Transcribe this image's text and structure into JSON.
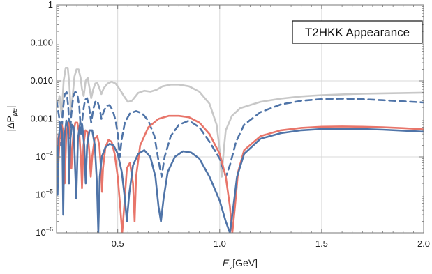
{
  "chart_data": {
    "type": "line",
    "annotation": "T2HKK Appearance",
    "xlabel": {
      "main": "E",
      "sub": "ν",
      "unit": "[GeV]"
    },
    "ylabel": {
      "main": "|ΔP",
      "sub": "μe",
      "close": "|"
    },
    "xlim": [
      0.2,
      2.0
    ],
    "ylim_log10": [
      -6,
      0
    ],
    "y_scale": "log",
    "grid": true,
    "x_ticks": [
      {
        "value": 0.5,
        "label": "0.5"
      },
      {
        "value": 1.0,
        "label": "1.0"
      },
      {
        "value": 1.5,
        "label": "1.5"
      },
      {
        "value": 2.0,
        "label": "2.0"
      }
    ],
    "y_ticks": [
      {
        "exp": 0,
        "label": "1",
        "sup": ""
      },
      {
        "exp": -1,
        "label": "0.100",
        "sup": ""
      },
      {
        "exp": -2,
        "label": "0.010",
        "sup": ""
      },
      {
        "exp": -3,
        "label": "0.001",
        "sup": ""
      },
      {
        "exp": -4,
        "label": "10",
        "sup": "−4"
      },
      {
        "exp": -5,
        "label": "10",
        "sup": "−5"
      },
      {
        "exp": -6,
        "label": "10",
        "sup": "−6"
      }
    ],
    "series": [
      {
        "color": "#c8c8c8",
        "dash": "solid",
        "points": [
          [
            0.2,
            0.002
          ],
          [
            0.215,
            0.004
          ],
          [
            0.225,
            0.0012
          ],
          [
            0.235,
            0.01
          ],
          [
            0.245,
            0.022
          ],
          [
            0.255,
            0.022
          ],
          [
            0.263,
            0.008
          ],
          [
            0.27,
            0.0015
          ],
          [
            0.278,
            0.0035
          ],
          [
            0.288,
            0.013
          ],
          [
            0.298,
            0.02
          ],
          [
            0.308,
            0.02
          ],
          [
            0.318,
            0.012
          ],
          [
            0.325,
            0.006
          ],
          [
            0.333,
            0.004
          ],
          [
            0.343,
            0.01
          ],
          [
            0.353,
            0.012
          ],
          [
            0.363,
            0.006
          ],
          [
            0.37,
            0.0035
          ],
          [
            0.38,
            0.006
          ],
          [
            0.39,
            0.0085
          ],
          [
            0.4,
            0.009
          ],
          [
            0.412,
            0.006
          ],
          [
            0.42,
            0.0045
          ],
          [
            0.432,
            0.0065
          ],
          [
            0.45,
            0.0085
          ],
          [
            0.47,
            0.0095
          ],
          [
            0.49,
            0.0085
          ],
          [
            0.51,
            0.006
          ],
          [
            0.53,
            0.004
          ],
          [
            0.55,
            0.0028
          ],
          [
            0.57,
            0.003
          ],
          [
            0.6,
            0.0048
          ],
          [
            0.63,
            0.0055
          ],
          [
            0.66,
            0.0052
          ],
          [
            0.69,
            0.0058
          ],
          [
            0.72,
            0.0072
          ],
          [
            0.76,
            0.008
          ],
          [
            0.8,
            0.008
          ],
          [
            0.85,
            0.0072
          ],
          [
            0.9,
            0.0052
          ],
          [
            0.95,
            0.0025
          ],
          [
            0.985,
            0.0007
          ],
          [
            1.0,
            0.00015
          ],
          [
            1.01,
            3e-05
          ],
          [
            1.02,
            0.00015
          ],
          [
            1.03,
            0.0005
          ],
          [
            1.06,
            0.0012
          ],
          [
            1.1,
            0.0019
          ],
          [
            1.2,
            0.0028
          ],
          [
            1.3,
            0.0034
          ],
          [
            1.4,
            0.0039
          ],
          [
            1.5,
            0.0042
          ],
          [
            1.6,
            0.0044
          ],
          [
            1.7,
            0.0046
          ],
          [
            1.8,
            0.0047
          ],
          [
            1.9,
            0.0048
          ],
          [
            2.0,
            0.0049
          ]
        ]
      },
      {
        "color": "#4f74a8",
        "dash": "dashed",
        "points": [
          [
            0.2,
            0.003
          ],
          [
            0.212,
            0.0012
          ],
          [
            0.222,
            0.0002
          ],
          [
            0.23,
            0.0015
          ],
          [
            0.24,
            0.0045
          ],
          [
            0.25,
            0.005
          ],
          [
            0.258,
            0.002
          ],
          [
            0.265,
            0.0003
          ],
          [
            0.272,
            0.0012
          ],
          [
            0.282,
            0.004
          ],
          [
            0.292,
            0.0052
          ],
          [
            0.302,
            0.0045
          ],
          [
            0.312,
            0.002
          ],
          [
            0.32,
            0.0004
          ],
          [
            0.33,
            0.0015
          ],
          [
            0.34,
            0.0032
          ],
          [
            0.35,
            0.0035
          ],
          [
            0.36,
            0.002
          ],
          [
            0.37,
            0.0008
          ],
          [
            0.38,
            0.0018
          ],
          [
            0.39,
            0.0028
          ],
          [
            0.4,
            0.003
          ],
          [
            0.412,
            0.0018
          ],
          [
            0.42,
            0.001
          ],
          [
            0.432,
            0.0016
          ],
          [
            0.445,
            0.0022
          ],
          [
            0.46,
            0.0023
          ],
          [
            0.475,
            0.0017
          ],
          [
            0.49,
            0.0009
          ],
          [
            0.5,
            0.0004
          ],
          [
            0.51,
            0.0001
          ],
          [
            0.52,
            0.0003
          ],
          [
            0.535,
            0.0008
          ],
          [
            0.56,
            0.0014
          ],
          [
            0.59,
            0.0016
          ],
          [
            0.62,
            0.0014
          ],
          [
            0.65,
            0.0009
          ],
          [
            0.68,
            0.00035
          ],
          [
            0.7,
            8e-05
          ],
          [
            0.715,
            3e-05
          ],
          [
            0.73,
            0.0001
          ],
          [
            0.76,
            0.00035
          ],
          [
            0.8,
            0.0007
          ],
          [
            0.85,
            0.0009
          ],
          [
            0.9,
            0.0006
          ],
          [
            0.95,
            0.00025
          ],
          [
            1.0,
            9e-05
          ],
          [
            1.03,
            3e-05
          ],
          [
            1.05,
            6e-05
          ],
          [
            1.08,
            0.00025
          ],
          [
            1.12,
            0.0007
          ],
          [
            1.2,
            0.0015
          ],
          [
            1.3,
            0.0024
          ],
          [
            1.4,
            0.003
          ],
          [
            1.5,
            0.0033
          ],
          [
            1.6,
            0.0034
          ],
          [
            1.7,
            0.0033
          ],
          [
            1.8,
            0.0031
          ],
          [
            1.9,
            0.0029
          ],
          [
            2.0,
            0.0027
          ]
        ]
      },
      {
        "color": "#e8756a",
        "dash": "solid",
        "points": [
          [
            0.2,
            0.0004
          ],
          [
            0.208,
            5e-05
          ],
          [
            0.215,
            0.0003
          ],
          [
            0.225,
            0.0007
          ],
          [
            0.232,
            0.0005
          ],
          [
            0.24,
            2e-05
          ],
          [
            0.248,
            0.0004
          ],
          [
            0.258,
            0.0008
          ],
          [
            0.266,
            0.0005
          ],
          [
            0.273,
            5e-05
          ],
          [
            0.282,
            0.0004
          ],
          [
            0.292,
            0.0008
          ],
          [
            0.302,
            0.0008
          ],
          [
            0.312,
            0.0004
          ],
          [
            0.32,
            8e-05
          ],
          [
            0.325,
            1.5e-05
          ],
          [
            0.332,
            0.0002
          ],
          [
            0.342,
            0.0005
          ],
          [
            0.352,
            0.00045
          ],
          [
            0.36,
            0.00015
          ],
          [
            0.368,
            3e-05
          ],
          [
            0.375,
            0.0001
          ],
          [
            0.387,
            0.0003
          ],
          [
            0.4,
            0.00035
          ],
          [
            0.41,
            0.0002
          ],
          [
            0.418,
            5e-05
          ],
          [
            0.423,
            1.2e-05
          ],
          [
            0.428,
            5e-05
          ],
          [
            0.44,
            0.00018
          ],
          [
            0.455,
            0.00028
          ],
          [
            0.47,
            0.00025
          ],
          [
            0.485,
            0.00012
          ],
          [
            0.5,
            3e-05
          ],
          [
            0.512,
            5e-06
          ],
          [
            0.522,
            1e-06
          ],
          [
            0.532,
            5e-06
          ],
          [
            0.545,
            5e-05
          ],
          [
            0.56,
            7e-05
          ],
          [
            0.575,
            2e-05
          ],
          [
            0.583,
            2e-06
          ],
          [
            0.59,
            3e-05
          ],
          [
            0.61,
            0.0002
          ],
          [
            0.65,
            0.0006
          ],
          [
            0.7,
            0.001
          ],
          [
            0.75,
            0.0012
          ],
          [
            0.8,
            0.0012
          ],
          [
            0.85,
            0.0011
          ],
          [
            0.9,
            0.0008
          ],
          [
            0.95,
            0.0004
          ],
          [
            1.0,
            0.00012
          ],
          [
            1.03,
            3e-05
          ],
          [
            1.05,
            5e-06
          ],
          [
            1.062,
            1e-06
          ],
          [
            1.075,
            5e-06
          ],
          [
            1.09,
            4e-05
          ],
          [
            1.12,
            0.00015
          ],
          [
            1.2,
            0.00035
          ],
          [
            1.3,
            0.0005
          ],
          [
            1.4,
            0.00058
          ],
          [
            1.5,
            0.00062
          ],
          [
            1.6,
            0.00063
          ],
          [
            1.7,
            0.00062
          ],
          [
            1.8,
            0.0006
          ],
          [
            1.9,
            0.00057
          ],
          [
            2.0,
            0.00053
          ]
        ]
      },
      {
        "color": "#4f74a8",
        "dash": "solid",
        "points": [
          [
            0.2,
            0.0002
          ],
          [
            0.205,
            1e-05
          ],
          [
            0.21,
            0.0003
          ],
          [
            0.22,
            0.0008
          ],
          [
            0.228,
            0.0004
          ],
          [
            0.233,
            3e-06
          ],
          [
            0.238,
            0.0003
          ],
          [
            0.248,
            0.0009
          ],
          [
            0.256,
            0.0006
          ],
          [
            0.262,
            2e-05
          ],
          [
            0.268,
            0.0003
          ],
          [
            0.276,
            0.0007
          ],
          [
            0.284,
            0.0006
          ],
          [
            0.291,
            5e-05
          ],
          [
            0.297,
            8e-06
          ],
          [
            0.305,
            0.0003
          ],
          [
            0.316,
            0.0008
          ],
          [
            0.326,
            0.0007
          ],
          [
            0.336,
            0.0002
          ],
          [
            0.343,
            2e-05
          ],
          [
            0.35,
            0.0002
          ],
          [
            0.362,
            0.0005
          ],
          [
            0.375,
            0.0005
          ],
          [
            0.388,
            0.0002
          ],
          [
            0.398,
            2e-05
          ],
          [
            0.405,
            1e-06
          ],
          [
            0.412,
            3e-05
          ],
          [
            0.422,
            0.0001
          ],
          [
            0.44,
            0.00018
          ],
          [
            0.46,
            0.00022
          ],
          [
            0.48,
            0.0002
          ],
          [
            0.5,
            0.00012
          ],
          [
            0.52,
            4e-05
          ],
          [
            0.535,
            8e-06
          ],
          [
            0.545,
            2e-06
          ],
          [
            0.556,
            1e-05
          ],
          [
            0.575,
            6e-05
          ],
          [
            0.6,
            0.00012
          ],
          [
            0.63,
            0.00015
          ],
          [
            0.66,
            0.0001
          ],
          [
            0.685,
            3e-05
          ],
          [
            0.7,
            5e-06
          ],
          [
            0.712,
            2e-06
          ],
          [
            0.725,
            8e-06
          ],
          [
            0.745,
            4e-05
          ],
          [
            0.78,
            0.0001
          ],
          [
            0.82,
            0.00014
          ],
          [
            0.86,
            0.00013
          ],
          [
            0.9,
            9e-05
          ],
          [
            0.95,
            3e-05
          ],
          [
            1.0,
            7e-06
          ],
          [
            1.03,
            2e-06
          ],
          [
            1.05,
            1e-06
          ],
          [
            1.065,
            4e-06
          ],
          [
            1.085,
            3e-05
          ],
          [
            1.12,
            0.00012
          ],
          [
            1.2,
            0.0003
          ],
          [
            1.3,
            0.00042
          ],
          [
            1.4,
            0.0005
          ],
          [
            1.5,
            0.00054
          ],
          [
            1.6,
            0.00055
          ],
          [
            1.7,
            0.00054
          ],
          [
            1.8,
            0.00052
          ],
          [
            1.9,
            0.00049
          ],
          [
            2.0,
            0.00046
          ]
        ]
      }
    ]
  }
}
